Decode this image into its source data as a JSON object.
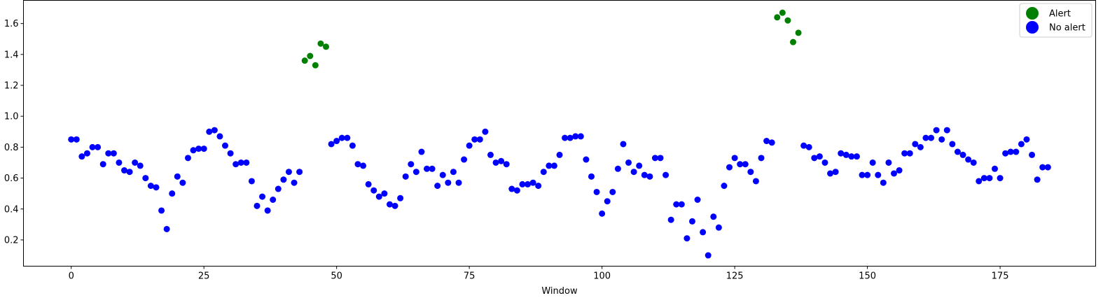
{
  "chart_data": {
    "type": "scatter",
    "title": "",
    "xlabel": "Window",
    "ylabel": "",
    "xlim": [
      -9,
      193
    ],
    "ylim": [
      0.03,
      1.75
    ],
    "xticks": [
      0,
      25,
      50,
      75,
      100,
      125,
      150,
      175
    ],
    "yticks": [
      0.2,
      0.4,
      0.6,
      0.8,
      1.0,
      1.2,
      1.4,
      1.6
    ],
    "grid": false,
    "legend_position": "top-right",
    "series": [
      {
        "name": "Alert",
        "color": "#008000",
        "x": [
          44,
          45,
          46,
          47,
          48,
          133,
          134,
          135,
          136,
          137
        ],
        "y": [
          1.36,
          1.39,
          1.33,
          1.47,
          1.45,
          1.64,
          1.67,
          1.62,
          1.48,
          1.54
        ]
      },
      {
        "name": "No alert",
        "color": "#0000ff",
        "x": [
          0,
          1,
          2,
          3,
          4,
          5,
          6,
          7,
          8,
          9,
          10,
          11,
          12,
          13,
          14,
          15,
          16,
          17,
          18,
          19,
          20,
          21,
          22,
          23,
          24,
          25,
          26,
          27,
          28,
          29,
          30,
          31,
          32,
          33,
          34,
          35,
          36,
          37,
          38,
          39,
          40,
          41,
          42,
          43,
          49,
          50,
          51,
          52,
          53,
          54,
          55,
          56,
          57,
          58,
          59,
          60,
          61,
          62,
          63,
          64,
          65,
          66,
          67,
          68,
          69,
          70,
          71,
          72,
          73,
          74,
          75,
          76,
          77,
          78,
          79,
          80,
          81,
          82,
          83,
          84,
          85,
          86,
          87,
          88,
          89,
          90,
          91,
          92,
          93,
          94,
          95,
          96,
          97,
          98,
          99,
          100,
          101,
          102,
          103,
          104,
          105,
          106,
          107,
          108,
          109,
          110,
          111,
          112,
          113,
          114,
          115,
          116,
          117,
          118,
          119,
          120,
          121,
          122,
          123,
          124,
          125,
          126,
          127,
          128,
          129,
          130,
          131,
          132,
          138,
          139,
          140,
          141,
          142,
          143,
          144,
          145,
          146,
          147,
          148,
          149,
          150,
          151,
          152,
          153,
          154,
          155,
          156,
          157,
          158,
          159,
          160,
          161,
          162,
          163,
          164,
          165,
          166,
          167,
          168,
          169,
          170,
          171,
          172,
          173,
          174,
          175,
          176,
          177,
          178,
          179,
          180,
          181,
          182,
          183,
          184
        ],
        "y": [
          0.85,
          0.85,
          0.74,
          0.76,
          0.8,
          0.8,
          0.69,
          0.76,
          0.76,
          0.7,
          0.65,
          0.64,
          0.7,
          0.68,
          0.6,
          0.55,
          0.54,
          0.39,
          0.27,
          0.5,
          0.61,
          0.57,
          0.73,
          0.78,
          0.79,
          0.79,
          0.9,
          0.91,
          0.87,
          0.81,
          0.76,
          0.69,
          0.7,
          0.7,
          0.58,
          0.42,
          0.48,
          0.39,
          0.46,
          0.53,
          0.59,
          0.64,
          0.57,
          0.64,
          0.82,
          0.84,
          0.86,
          0.86,
          0.81,
          0.69,
          0.68,
          0.56,
          0.52,
          0.48,
          0.5,
          0.43,
          0.42,
          0.47,
          0.61,
          0.69,
          0.64,
          0.77,
          0.66,
          0.66,
          0.55,
          0.62,
          0.57,
          0.64,
          0.57,
          0.72,
          0.81,
          0.85,
          0.85,
          0.9,
          0.75,
          0.7,
          0.71,
          0.69,
          0.53,
          0.52,
          0.56,
          0.56,
          0.57,
          0.55,
          0.64,
          0.68,
          0.68,
          0.75,
          0.86,
          0.86,
          0.87,
          0.87,
          0.72,
          0.61,
          0.51,
          0.37,
          0.45,
          0.51,
          0.66,
          0.82,
          0.7,
          0.64,
          0.68,
          0.62,
          0.61,
          0.73,
          0.73,
          0.62,
          0.33,
          0.43,
          0.43,
          0.21,
          0.32,
          0.46,
          0.25,
          0.1,
          0.35,
          0.28,
          0.55,
          0.67,
          0.73,
          0.69,
          0.69,
          0.64,
          0.58,
          0.73,
          0.84,
          0.83,
          0.81,
          0.8,
          0.73,
          0.74,
          0.7,
          0.63,
          0.64,
          0.76,
          0.75,
          0.74,
          0.74,
          0.62,
          0.62,
          0.7,
          0.62,
          0.57,
          0.7,
          0.63,
          0.65,
          0.76,
          0.76,
          0.82,
          0.8,
          0.86,
          0.86,
          0.91,
          0.85,
          0.91,
          0.82,
          0.77,
          0.75,
          0.72,
          0.7,
          0.58,
          0.6,
          0.6,
          0.66,
          0.6,
          0.76,
          0.77,
          0.77,
          0.82,
          0.85,
          0.75,
          0.59,
          0.67,
          0.67
        ]
      }
    ]
  }
}
